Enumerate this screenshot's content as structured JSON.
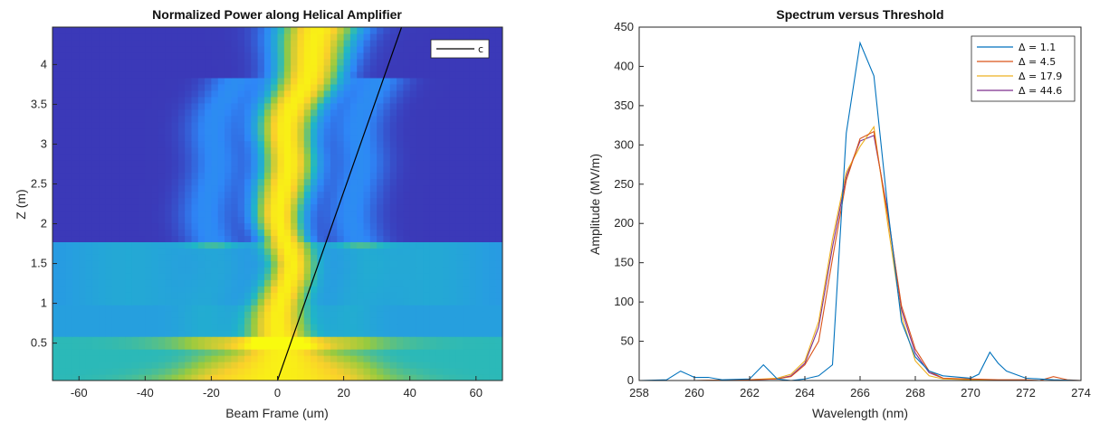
{
  "chart_data": [
    {
      "type": "heatmap",
      "title": "Normalized Power along Helical Amplifier",
      "xlabel": "Beam Frame (um)",
      "ylabel": "Z (m)",
      "xlim": [
        -68,
        68
      ],
      "ylim": [
        0.03,
        4.47
      ],
      "xticks": [
        -60,
        -40,
        -20,
        0,
        20,
        40,
        60
      ],
      "yticks": [
        0.5,
        1,
        1.5,
        2,
        2.5,
        3,
        3.5,
        4
      ],
      "colormap": [
        "#3e26a8",
        "#2e87f7",
        "#1fb7c6",
        "#98ca3f",
        "#f9cf2c",
        "#f9fb0e"
      ],
      "legend": [
        {
          "name": "c",
          "color": "#000000"
        }
      ],
      "line": {
        "name": "c",
        "x": [
          0,
          37.5
        ],
        "y": [
          0.03,
          4.47
        ]
      },
      "core_profile": {
        "z": [
          0.03,
          0.5,
          1.0,
          1.5,
          2.0,
          2.5,
          3.0,
          3.5,
          4.0,
          4.47
        ],
        "center": [
          0,
          0,
          2,
          3,
          2,
          1,
          3,
          5,
          9,
          14
        ],
        "halfwidth": [
          30,
          9,
          7,
          6,
          7,
          8,
          8,
          9,
          10,
          12
        ]
      },
      "legend_position": "top-right"
    },
    {
      "type": "line",
      "title": "Spectrum versus Threshold",
      "xlabel": "Wavelength (nm)",
      "ylabel": "Amplitude (MV/m)",
      "xlim": [
        258,
        274
      ],
      "ylim": [
        0,
        450
      ],
      "xticks": [
        258,
        260,
        262,
        264,
        266,
        268,
        270,
        272,
        274
      ],
      "yticks": [
        0,
        50,
        100,
        150,
        200,
        250,
        300,
        350,
        400,
        450
      ],
      "legend_position": "top-right",
      "series": [
        {
          "name": "Δ = 1.1",
          "color": "#0072bd",
          "x": [
            258,
            259,
            259.5,
            260,
            260.5,
            261,
            262,
            262.5,
            263,
            263.5,
            264,
            264.5,
            265,
            265.5,
            266,
            266.5,
            267,
            267.5,
            268,
            268.5,
            269,
            270,
            270.3,
            270.7,
            271,
            271.3,
            272,
            273,
            274
          ],
          "y": [
            0,
            1,
            12,
            4,
            4,
            1,
            2,
            20,
            2,
            0,
            2,
            6,
            20,
            315,
            430,
            388,
            220,
            75,
            30,
            12,
            6,
            3,
            8,
            36,
            22,
            12,
            3,
            1,
            0
          ]
        },
        {
          "name": "Δ = 4.5",
          "color": "#d95319",
          "x": [
            258,
            260,
            262,
            263,
            263.5,
            264,
            264.5,
            265,
            265.5,
            266,
            266.5,
            267,
            267.5,
            268,
            268.5,
            269,
            270,
            271,
            272,
            272.5,
            273,
            273.5,
            274
          ],
          "y": [
            0,
            0,
            1,
            2,
            5,
            20,
            50,
            155,
            255,
            308,
            317,
            210,
            95,
            40,
            12,
            3,
            2,
            1,
            1,
            0,
            5,
            1,
            0
          ]
        },
        {
          "name": "Δ = 17.9",
          "color": "#edb120",
          "x": [
            258,
            260,
            262,
            263,
            263.5,
            264,
            264.5,
            265,
            265.5,
            266,
            266.5,
            267,
            267.5,
            268,
            268.5,
            269,
            270,
            272,
            274
          ],
          "y": [
            0,
            0,
            1,
            3,
            8,
            25,
            75,
            180,
            265,
            298,
            323,
            200,
            82,
            25,
            6,
            2,
            1,
            0,
            0
          ]
        },
        {
          "name": "Δ = 44.6",
          "color": "#7e2f8e",
          "x": [
            258,
            260,
            262,
            263,
            263.5,
            264,
            264.5,
            265,
            265.5,
            266,
            266.5,
            267,
            267.5,
            268,
            268.5,
            269,
            270,
            272,
            274
          ],
          "y": [
            0,
            0,
            1,
            2,
            6,
            22,
            68,
            170,
            260,
            305,
            312,
            215,
            90,
            35,
            10,
            3,
            1,
            0,
            0
          ]
        }
      ]
    }
  ]
}
